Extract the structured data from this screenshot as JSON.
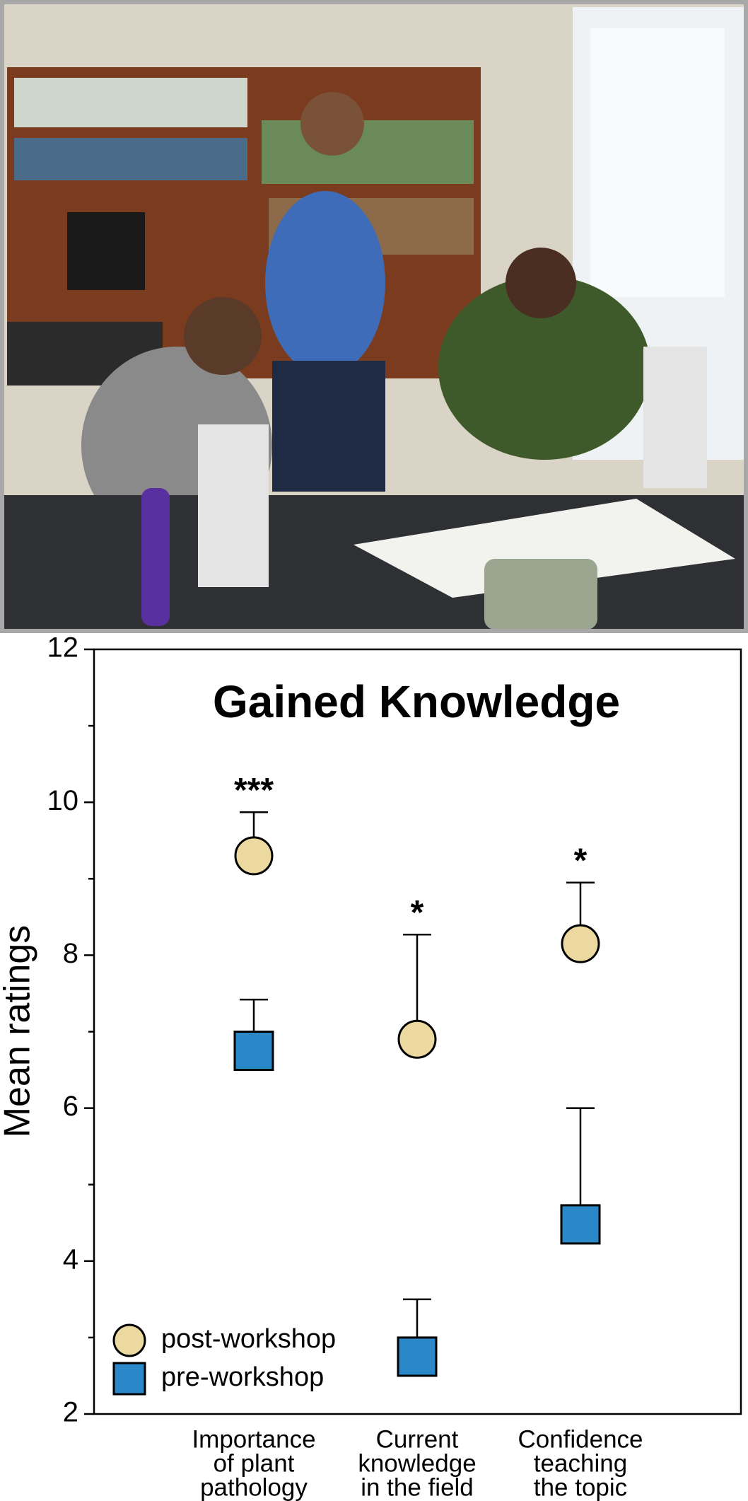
{
  "chart_data": {
    "type": "dot-errorbar",
    "title": "Gained Knowledge",
    "y_label": "Mean ratings",
    "categories": [
      [
        "Importance",
        "of plant",
        "pathology"
      ],
      [
        "Current",
        "knowledge",
        "in the field"
      ],
      [
        "Confidence",
        "teaching",
        "the topic"
      ]
    ],
    "series": [
      {
        "name": "post-workshop",
        "color": "#ecd9a0",
        "marker": "circle",
        "values": [
          9.3,
          6.9,
          8.15
        ],
        "errors": [
          0.57,
          1.37,
          0.8
        ]
      },
      {
        "name": "pre-workshop",
        "color": "#2b88c8",
        "marker": "square",
        "values": [
          6.75,
          2.75,
          4.48
        ],
        "errors": [
          0.67,
          0.75,
          1.52
        ]
      }
    ],
    "significance": [
      "***",
      "*",
      "*"
    ],
    "ylim": [
      2,
      12
    ],
    "yticks": [
      2,
      4,
      6,
      8,
      10,
      12
    ],
    "yminorticks": [
      3,
      5,
      7,
      9,
      11
    ],
    "legend": "lower left"
  }
}
